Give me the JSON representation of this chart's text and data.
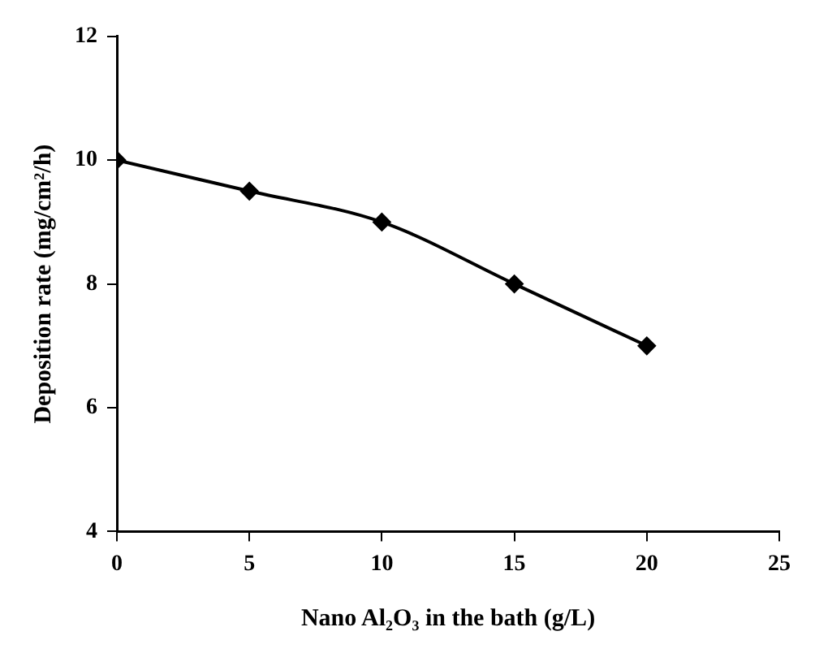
{
  "chart_data": {
    "type": "line",
    "xlabel": "Nano Al₂O₃ in the bath (g/L)",
    "ylabel": "Deposition rate (mg/cm²/h)",
    "x": [
      0,
      5,
      10,
      15,
      20
    ],
    "series": [
      {
        "color": "#000000",
        "values": [
          10,
          9.5,
          9,
          8,
          7
        ]
      }
    ],
    "xlim": [
      0,
      25
    ],
    "xticks": [
      0,
      5,
      10,
      15,
      20,
      25
    ],
    "ylim": [
      4,
      12
    ],
    "yticks": [
      4,
      6,
      8,
      10,
      12
    ],
    "grid": false,
    "legend": false,
    "marker": "diamond",
    "line_style": "solid"
  }
}
